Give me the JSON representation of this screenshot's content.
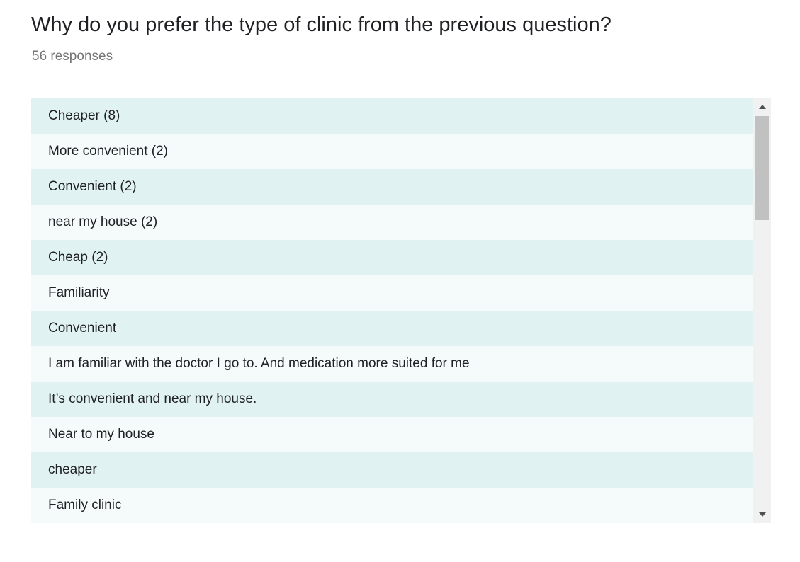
{
  "question": {
    "title": "Why do you prefer the type of clinic from the previous question?",
    "response_count": "56 responses"
  },
  "responses": [
    "Cheaper (8)",
    "More convenient (2)",
    "Convenient (2)",
    "near my house (2)",
    "Cheap (2)",
    "Familiarity",
    "Convenient",
    "I am familiar with the doctor I go to. And medication more suited for me",
    "It’s convenient and near my house.",
    "Near to my house",
    "cheaper",
    "Family clinic"
  ],
  "scrollbar": {
    "up_icon": "triangle-up-icon",
    "down_icon": "triangle-down-icon"
  },
  "colors": {
    "row_odd": "#e1f2f2",
    "row_even": "#f5fafa",
    "title_text": "#202124",
    "count_text": "#757575"
  }
}
